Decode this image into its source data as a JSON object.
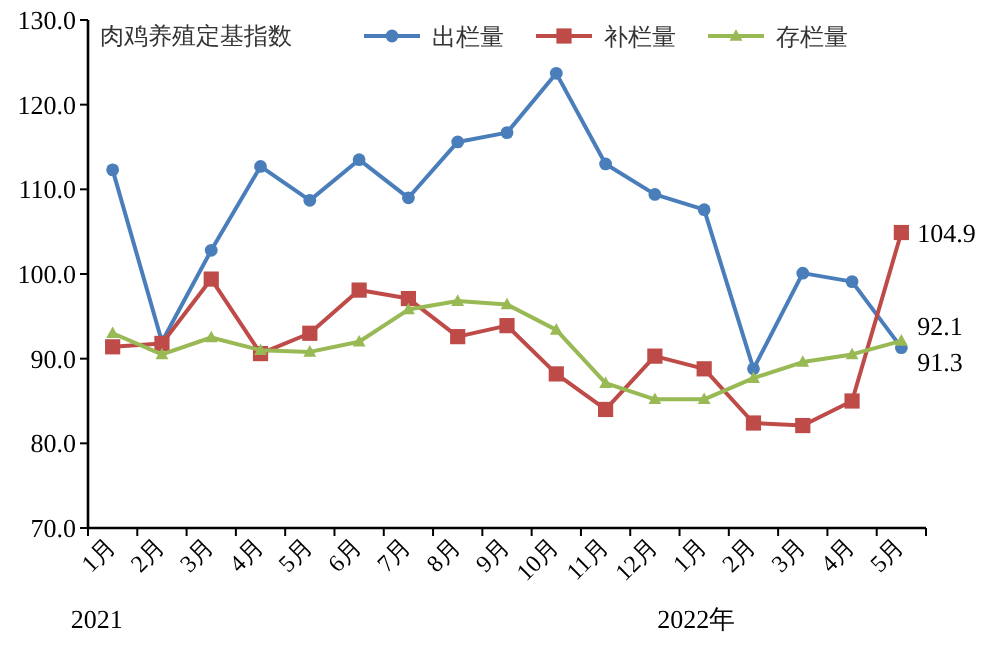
{
  "chart_data": {
    "type": "line",
    "title": "肉鸡养殖定基指数",
    "categories": [
      "1月",
      "2月",
      "3月",
      "4月",
      "5月",
      "6月",
      "7月",
      "8月",
      "9月",
      "10月",
      "11月",
      "12月",
      "1月",
      "2月",
      "3月",
      "4月",
      "5月"
    ],
    "series": [
      {
        "name": "出栏量",
        "color": "#4a7ebb",
        "marker": "circle",
        "values": [
          112.3,
          92.0,
          102.8,
          112.7,
          108.7,
          113.5,
          109.0,
          115.6,
          116.7,
          123.7,
          113.0,
          109.4,
          107.6,
          88.8,
          100.1,
          99.1,
          91.3
        ],
        "value_labels": [
          null,
          null,
          null,
          null,
          null,
          null,
          null,
          null,
          null,
          null,
          null,
          null,
          null,
          null,
          null,
          null,
          "91.3"
        ]
      },
      {
        "name": "补栏量",
        "color": "#be4b48",
        "marker": "square",
        "values": [
          91.4,
          91.8,
          99.4,
          90.6,
          93.0,
          98.1,
          97.1,
          92.6,
          93.9,
          88.2,
          84.0,
          90.3,
          88.8,
          82.4,
          82.1,
          85.0,
          104.9
        ],
        "value_labels": [
          null,
          null,
          null,
          null,
          null,
          null,
          null,
          null,
          null,
          null,
          null,
          null,
          null,
          null,
          null,
          null,
          "104.9"
        ]
      },
      {
        "name": "存栏量",
        "color": "#98b954",
        "marker": "triangle",
        "values": [
          93.0,
          90.5,
          92.5,
          91.0,
          90.8,
          92.0,
          95.8,
          96.8,
          96.4,
          93.4,
          87.1,
          85.2,
          85.2,
          87.7,
          89.6,
          90.5,
          92.1
        ],
        "value_labels": [
          null,
          null,
          null,
          null,
          null,
          null,
          null,
          null,
          null,
          null,
          null,
          null,
          null,
          null,
          null,
          null,
          "92.1"
        ]
      }
    ],
    "ylim": [
      70,
      130
    ],
    "yticks": [
      {
        "value": 70,
        "label": "70.0"
      },
      {
        "value": 80,
        "label": "80.0"
      },
      {
        "value": 90,
        "label": "90.0"
      },
      {
        "value": 100,
        "label": "100.0"
      },
      {
        "value": 110,
        "label": "110.0"
      },
      {
        "value": 120,
        "label": "120.0"
      },
      {
        "value": 130,
        "label": "130.0"
      }
    ],
    "annotations": [
      "2021",
      "2022年"
    ],
    "legend": "top",
    "grid": false,
    "line_style": "solid"
  }
}
